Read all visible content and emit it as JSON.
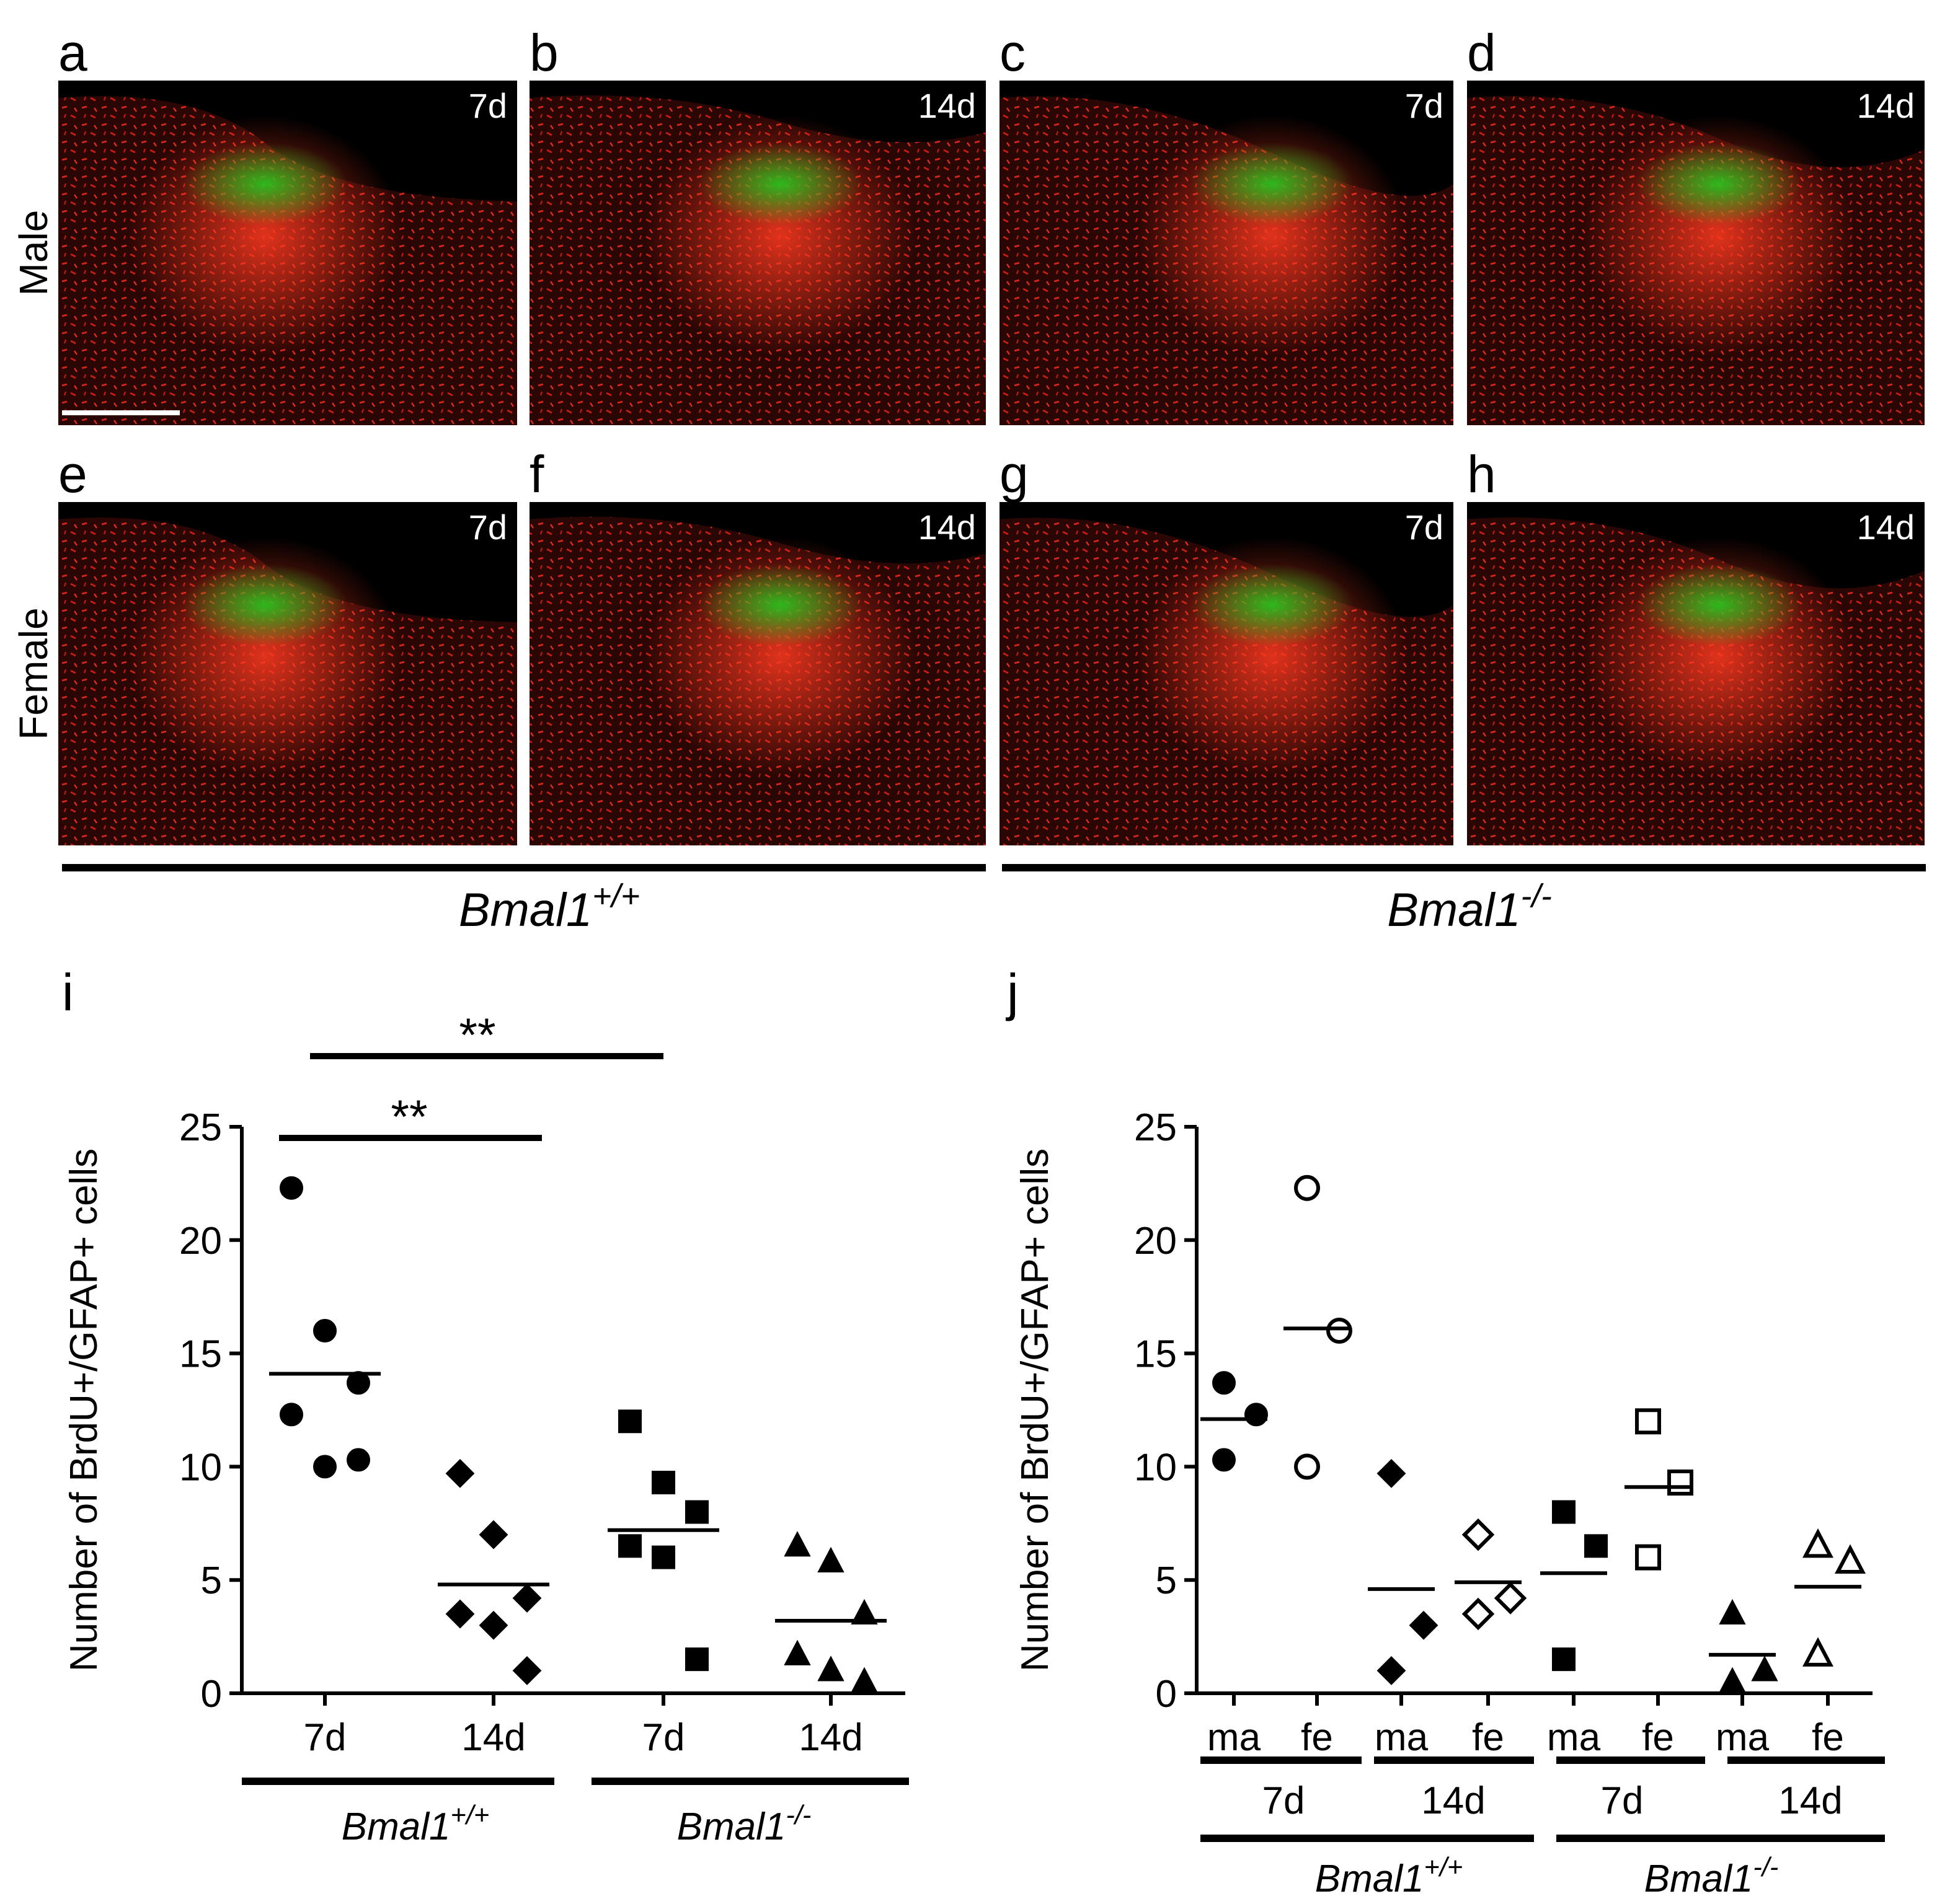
{
  "panels": [
    {
      "letter": "a",
      "time": "7d"
    },
    {
      "letter": "b",
      "time": "14d"
    },
    {
      "letter": "c",
      "time": "7d"
    },
    {
      "letter": "d",
      "time": "14d"
    },
    {
      "letter": "e",
      "time": "7d"
    },
    {
      "letter": "f",
      "time": "14d"
    },
    {
      "letter": "g",
      "time": "7d"
    },
    {
      "letter": "h",
      "time": "14d"
    }
  ],
  "row_labels": [
    "Male",
    "Female"
  ],
  "genotype_labels": [
    {
      "base": "Bmal1",
      "sup": "+/+"
    },
    {
      "base": "Bmal1",
      "sup": "-/-"
    }
  ],
  "chart_data": [
    {
      "type": "scatter",
      "panel": "i",
      "y_label": "Number of BrdU+/GFAP+ cells",
      "ylim": [
        0,
        25
      ],
      "yticks": [
        0,
        5,
        10,
        15,
        20,
        25
      ],
      "groups": [
        {
          "category": "7d",
          "marker": "circle",
          "filled": true,
          "values": [
            22.3,
            16,
            13.7,
            12.3,
            10,
            10.3
          ],
          "mean": 14.1
        },
        {
          "category": "14d",
          "marker": "diamond",
          "filled": true,
          "values": [
            9.7,
            7,
            4.2,
            3.5,
            3,
            1
          ],
          "mean": 4.8
        },
        {
          "category": "7d",
          "marker": "square",
          "filled": true,
          "values": [
            12,
            9.3,
            8,
            6.5,
            6,
            1.5
          ],
          "mean": 7.2
        },
        {
          "category": "14d",
          "marker": "triangle",
          "filled": true,
          "values": [
            6.5,
            5.8,
            3.5,
            1.7,
            1,
            0.5
          ],
          "mean": 3.2
        }
      ],
      "genotype_labels": [
        {
          "base": "Bmal1",
          "sup": "+/+"
        },
        {
          "base": "Bmal1",
          "sup": "-/-"
        }
      ],
      "annotations": [
        "**",
        "**"
      ]
    },
    {
      "type": "scatter",
      "panel": "j",
      "y_label": "Number of BrdU+/GFAP+ cells",
      "ylim": [
        0,
        25
      ],
      "yticks": [
        0,
        5,
        10,
        15,
        20,
        25
      ],
      "groups": [
        {
          "category": "ma",
          "marker": "circle",
          "filled": true,
          "values": [
            13.7,
            12.3,
            10.3
          ],
          "mean": 12.1
        },
        {
          "category": "fe",
          "marker": "circle",
          "filled": false,
          "values": [
            22.3,
            16,
            10
          ],
          "mean": 16.1
        },
        {
          "category": "ma",
          "marker": "diamond",
          "filled": true,
          "values": [
            9.7,
            3,
            1
          ],
          "mean": 4.6
        },
        {
          "category": "fe",
          "marker": "diamond",
          "filled": false,
          "values": [
            7,
            4.2,
            3.5
          ],
          "mean": 4.9
        },
        {
          "category": "ma",
          "marker": "square",
          "filled": true,
          "values": [
            8,
            6.5,
            1.5
          ],
          "mean": 5.3
        },
        {
          "category": "fe",
          "marker": "square",
          "filled": false,
          "values": [
            12,
            9.3,
            6
          ],
          "mean": 9.1
        },
        {
          "category": "ma",
          "marker": "triangle",
          "filled": true,
          "values": [
            3.5,
            1,
            0.5
          ],
          "mean": 1.7
        },
        {
          "category": "fe",
          "marker": "triangle",
          "filled": false,
          "values": [
            6.5,
            5.8,
            1.7
          ],
          "mean": 4.7
        }
      ],
      "time_labels": [
        "7d",
        "14d",
        "7d",
        "14d"
      ],
      "genotype_labels": [
        {
          "base": "Bmal1",
          "sup": "+/+"
        },
        {
          "base": "Bmal1",
          "sup": "-/-"
        }
      ]
    }
  ]
}
